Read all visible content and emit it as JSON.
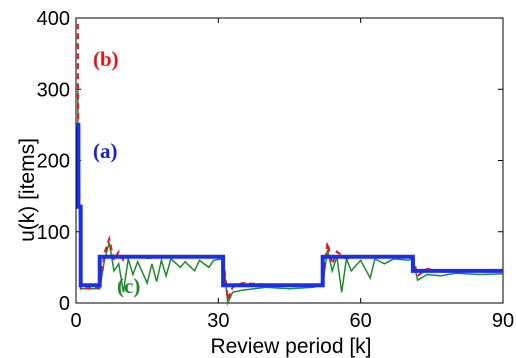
{
  "chart_data": {
    "type": "line",
    "xlabel": "Review period [k]",
    "ylabel": "u(k)  [items]",
    "xlim": [
      0,
      90
    ],
    "ylim": [
      0,
      400
    ],
    "xticks": [
      "0",
      "30",
      "60",
      "90"
    ],
    "yticks": [
      "0",
      "100",
      "200",
      "300",
      "400"
    ],
    "grid": false,
    "annotations": [
      {
        "text": "(b)",
        "color": "#e8141c"
      },
      {
        "text": "(a)",
        "color": "#1b22c9"
      },
      {
        "text": "(c)",
        "color": "#1e8a2a"
      }
    ],
    "series": [
      {
        "id": "a",
        "color": "#1830e6",
        "style": "solid",
        "points": [
          [
            0,
            250
          ],
          [
            0.5,
            250
          ],
          [
            0.5,
            135
          ],
          [
            1,
            135
          ],
          [
            1,
            25
          ],
          [
            5,
            25
          ],
          [
            5,
            65
          ],
          [
            31,
            65
          ],
          [
            31,
            25
          ],
          [
            52,
            25
          ],
          [
            52,
            65
          ],
          [
            71,
            65
          ],
          [
            71,
            45
          ],
          [
            90,
            45
          ]
        ]
      },
      {
        "id": "b",
        "color": "#e8141c",
        "style": "dashed",
        "points": [
          [
            0,
            390
          ],
          [
            0.4,
            390
          ],
          [
            0.4,
            290
          ],
          [
            0.8,
            120
          ],
          [
            1,
            20
          ],
          [
            5,
            22
          ],
          [
            6,
            70
          ],
          [
            7,
            90
          ],
          [
            8,
            60
          ],
          [
            9,
            72
          ],
          [
            10,
            60
          ],
          [
            12,
            66
          ],
          [
            15,
            63
          ],
          [
            20,
            65
          ],
          [
            25,
            65
          ],
          [
            31,
            65
          ],
          [
            32,
            5
          ],
          [
            33,
            22
          ],
          [
            35,
            28
          ],
          [
            40,
            26
          ],
          [
            45,
            25
          ],
          [
            52,
            25
          ],
          [
            53,
            85
          ],
          [
            54,
            55
          ],
          [
            55,
            72
          ],
          [
            57,
            62
          ],
          [
            60,
            66
          ],
          [
            65,
            65
          ],
          [
            71,
            65
          ],
          [
            72,
            38
          ],
          [
            74,
            48
          ],
          [
            77,
            44
          ],
          [
            80,
            45
          ],
          [
            90,
            45
          ]
        ]
      },
      {
        "id": "c",
        "color": "#1e8a2a",
        "style": "solid",
        "points": [
          [
            0,
            300
          ],
          [
            0.4,
            300
          ],
          [
            0.4,
            250
          ],
          [
            0.8,
            100
          ],
          [
            1,
            20
          ],
          [
            5,
            20
          ],
          [
            6,
            60
          ],
          [
            7,
            85
          ],
          [
            8,
            45
          ],
          [
            9,
            55
          ],
          [
            10,
            15
          ],
          [
            11,
            62
          ],
          [
            12,
            40
          ],
          [
            13,
            58
          ],
          [
            15,
            28
          ],
          [
            16,
            55
          ],
          [
            17,
            30
          ],
          [
            18,
            60
          ],
          [
            19,
            38
          ],
          [
            20,
            62
          ],
          [
            22,
            50
          ],
          [
            23,
            58
          ],
          [
            25,
            45
          ],
          [
            26,
            60
          ],
          [
            28,
            50
          ],
          [
            29,
            60
          ],
          [
            31,
            62
          ],
          [
            32,
            0
          ],
          [
            33,
            15
          ],
          [
            35,
            18
          ],
          [
            40,
            22
          ],
          [
            45,
            20
          ],
          [
            50,
            22
          ],
          [
            52,
            25
          ],
          [
            53,
            75
          ],
          [
            54,
            45
          ],
          [
            55,
            65
          ],
          [
            56,
            15
          ],
          [
            57,
            62
          ],
          [
            58,
            45
          ],
          [
            60,
            60
          ],
          [
            62,
            35
          ],
          [
            63,
            62
          ],
          [
            65,
            55
          ],
          [
            67,
            62
          ],
          [
            70,
            60
          ],
          [
            71,
            62
          ],
          [
            72,
            32
          ],
          [
            74,
            40
          ],
          [
            77,
            38
          ],
          [
            80,
            42
          ],
          [
            85,
            40
          ],
          [
            90,
            41
          ]
        ]
      }
    ]
  }
}
